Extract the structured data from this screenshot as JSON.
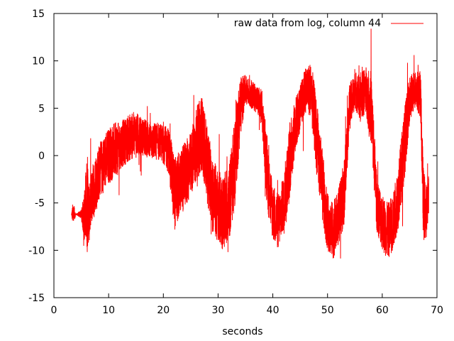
{
  "chart_data": {
    "type": "line",
    "title": "",
    "xlabel": "seconds",
    "ylabel": "",
    "xlim": [
      0,
      70
    ],
    "ylim": [
      -15,
      15
    ],
    "xticks": [
      0,
      10,
      20,
      30,
      40,
      50,
      60,
      70
    ],
    "yticks": [
      -15,
      -10,
      -5,
      0,
      5,
      10,
      15
    ],
    "grid": false,
    "legend_position": "top-right",
    "series": [
      {
        "name": "raw data from log, column 44",
        "color": "#ff0000",
        "x": [
          3.2,
          3.5,
          4.0,
          5.0,
          5.5,
          6.0,
          6.5,
          7.0,
          8.0,
          9.0,
          10.0,
          11.0,
          12.0,
          13.0,
          14.0,
          15.0,
          16.0,
          17.0,
          18.0,
          19.0,
          20.0,
          21.0,
          22.0,
          23.0,
          24.0,
          25.0,
          26.0,
          27.0,
          28.0,
          29.0,
          30.0,
          31.0,
          32.0,
          33.0,
          34.0,
          35.0,
          36.0,
          37.0,
          38.0,
          39.0,
          40.0,
          41.0,
          42.0,
          43.0,
          44.0,
          45.0,
          46.0,
          47.0,
          48.0,
          49.0,
          50.0,
          51.0,
          52.0,
          53.0,
          54.0,
          55.0,
          56.0,
          57.0,
          58.0,
          59.0,
          60.0,
          61.0,
          62.0,
          63.0,
          64.0,
          65.0,
          66.0,
          67.0,
          67.5,
          68.0,
          68.5
        ],
        "y": [
          -6.2,
          -6.2,
          -6.2,
          -6.2,
          -6.5,
          -5.0,
          -6.0,
          -4.0,
          -2.0,
          -1.0,
          0.0,
          0.5,
          1.0,
          1.5,
          2.0,
          2.2,
          2.0,
          1.8,
          1.5,
          1.5,
          1.2,
          0.5,
          -4.0,
          -3.0,
          -2.0,
          -1.0,
          1.0,
          2.5,
          -1.0,
          -4.0,
          -5.5,
          -6.0,
          -5.0,
          -1.0,
          5.0,
          7.0,
          6.5,
          6.0,
          5.0,
          -2.0,
          -6.0,
          -7.0,
          -5.0,
          -1.0,
          3.0,
          5.0,
          7.0,
          7.0,
          2.0,
          -3.0,
          -7.0,
          -8.0,
          -6.5,
          -4.0,
          5.0,
          7.0,
          6.0,
          7.0,
          5.0,
          -5.0,
          -7.0,
          -8.0,
          -7.0,
          -4.0,
          1.0,
          6.0,
          7.0,
          6.5,
          -5.0,
          -6.0,
          -4.0
        ],
        "noise_amplitude": [
          0,
          1.5,
          0,
          0.5,
          2.5,
          5.0,
          3.0,
          3.0,
          3.0,
          3.0,
          3.0,
          3.0,
          2.5,
          2.5,
          2.5,
          2.5,
          2.0,
          2.0,
          2.0,
          2.0,
          2.0,
          2.5,
          4.0,
          3.5,
          3.5,
          3.5,
          4.0,
          4.0,
          4.0,
          4.0,
          4.0,
          4.0,
          4.0,
          5.0,
          3.5,
          1.5,
          1.5,
          1.5,
          2.0,
          4.0,
          3.0,
          3.0,
          3.0,
          4.0,
          3.0,
          2.5,
          2.5,
          3.0,
          4.0,
          4.0,
          3.0,
          3.0,
          3.0,
          3.5,
          2.5,
          2.0,
          2.5,
          2.5,
          4.0,
          3.0,
          3.0,
          3.0,
          3.0,
          3.5,
          4.0,
          2.5,
          2.0,
          2.5,
          4.0,
          3.0,
          2.0
        ]
      }
    ]
  }
}
